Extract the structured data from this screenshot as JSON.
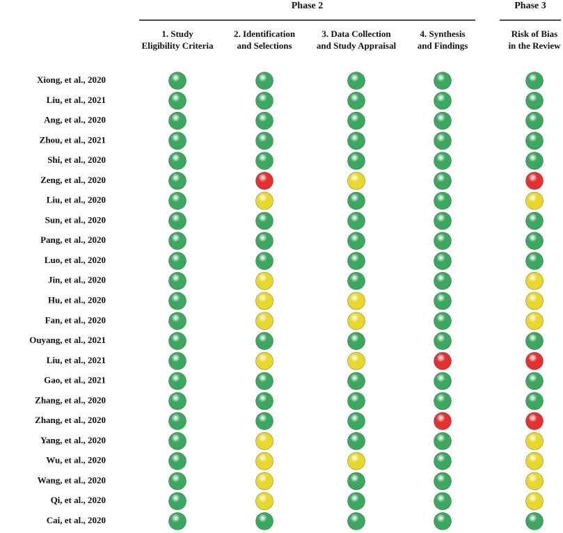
{
  "table": {
    "groups": [
      {
        "title": "Phase 2",
        "columns": [
          [
            "1. Study",
            "Eligibility Criteria"
          ],
          [
            "2. Identification",
            "and Selections"
          ],
          [
            "3. Data Collection",
            "and Study Appraisal"
          ],
          [
            "4. Synthesis",
            "and Findings"
          ]
        ]
      },
      {
        "title": "Phase 3",
        "columns": [
          [
            "Risk of Bias",
            "in the Review"
          ]
        ]
      }
    ],
    "rows": [
      {
        "study": "Xiong, et al., 2020",
        "ratings": [
          "#3aa85f",
          "#3aa85f",
          "#3aa85f",
          "#3aa85f",
          "#3aa85f"
        ]
      },
      {
        "study": "Liu, et al., 2021",
        "ratings": [
          "#3aa85f",
          "#3aa85f",
          "#3aa85f",
          "#3aa85f",
          "#3aa85f"
        ]
      },
      {
        "study": "Ang, et al., 2020",
        "ratings": [
          "#3aa85f",
          "#3aa85f",
          "#3aa85f",
          "#3aa85f",
          "#3aa85f"
        ]
      },
      {
        "study": "Zhou, et al., 2021",
        "ratings": [
          "#3aa85f",
          "#3aa85f",
          "#3aa85f",
          "#3aa85f",
          "#3aa85f"
        ]
      },
      {
        "study": "Shi, et al., 2020",
        "ratings": [
          "#3aa85f",
          "#3aa85f",
          "#3aa85f",
          "#3aa85f",
          "#3aa85f"
        ]
      },
      {
        "study": "Zeng, et al., 2020",
        "ratings": [
          "#3aa85f",
          "#e53030",
          "#e8d82a",
          "#3aa85f",
          "#e53030"
        ]
      },
      {
        "study": "Liu, et al., 2020",
        "ratings": [
          "#3aa85f",
          "#e8d82a",
          "#3aa85f",
          "#3aa85f",
          "#e8d82a"
        ]
      },
      {
        "study": "Sun, et al., 2020",
        "ratings": [
          "#3aa85f",
          "#3aa85f",
          "#3aa85f",
          "#3aa85f",
          "#3aa85f"
        ]
      },
      {
        "study": "Pang, et al., 2020",
        "ratings": [
          "#3aa85f",
          "#3aa85f",
          "#3aa85f",
          "#3aa85f",
          "#3aa85f"
        ]
      },
      {
        "study": "Luo, et al., 2020",
        "ratings": [
          "#3aa85f",
          "#3aa85f",
          "#3aa85f",
          "#3aa85f",
          "#3aa85f"
        ]
      },
      {
        "study": "Jin, et al., 2020",
        "ratings": [
          "#3aa85f",
          "#e8d82a",
          "#3aa85f",
          "#3aa85f",
          "#e8d82a"
        ]
      },
      {
        "study": "Hu, et al., 2020",
        "ratings": [
          "#3aa85f",
          "#e8d82a",
          "#e8d82a",
          "#3aa85f",
          "#e8d82a"
        ]
      },
      {
        "study": "Fan, et al., 2020",
        "ratings": [
          "#3aa85f",
          "#e8d82a",
          "#e8d82a",
          "#3aa85f",
          "#e8d82a"
        ]
      },
      {
        "study": "Ouyang, et al., 2021",
        "ratings": [
          "#3aa85f",
          "#3aa85f",
          "#3aa85f",
          "#3aa85f",
          "#3aa85f"
        ]
      },
      {
        "study": "Liu, et al., 2021",
        "ratings": [
          "#3aa85f",
          "#e8d82a",
          "#e8d82a",
          "#e53030",
          "#e53030"
        ]
      },
      {
        "study": "Gao, et al., 2021",
        "ratings": [
          "#3aa85f",
          "#3aa85f",
          "#3aa85f",
          "#3aa85f",
          "#3aa85f"
        ]
      },
      {
        "study": "Zhang, et al., 2020",
        "ratings": [
          "#3aa85f",
          "#3aa85f",
          "#3aa85f",
          "#3aa85f",
          "#3aa85f"
        ]
      },
      {
        "study": "Zhang, et al., 2020",
        "ratings": [
          "#3aa85f",
          "#3aa85f",
          "#3aa85f",
          "#e53030",
          "#e53030"
        ]
      },
      {
        "study": "Yang, et al., 2020",
        "ratings": [
          "#3aa85f",
          "#e8d82a",
          "#3aa85f",
          "#3aa85f",
          "#e8d82a"
        ]
      },
      {
        "study": "Wu, et al., 2020",
        "ratings": [
          "#3aa85f",
          "#e8d82a",
          "#e8d82a",
          "#3aa85f",
          "#e8d82a"
        ]
      },
      {
        "study": "Wang, et al., 2020",
        "ratings": [
          "#3aa85f",
          "#e8d82a",
          "#3aa85f",
          "#3aa85f",
          "#e8d82a"
        ]
      },
      {
        "study": "Qi, et al., 2020",
        "ratings": [
          "#3aa85f",
          "#e8d82a",
          "#3aa85f",
          "#3aa85f",
          "#e8d82a"
        ]
      },
      {
        "study": "Cai, et al., 2020",
        "ratings": [
          "#3aa85f",
          "#3aa85f",
          "#3aa85f",
          "#3aa85f",
          "#3aa85f"
        ]
      }
    ]
  }
}
